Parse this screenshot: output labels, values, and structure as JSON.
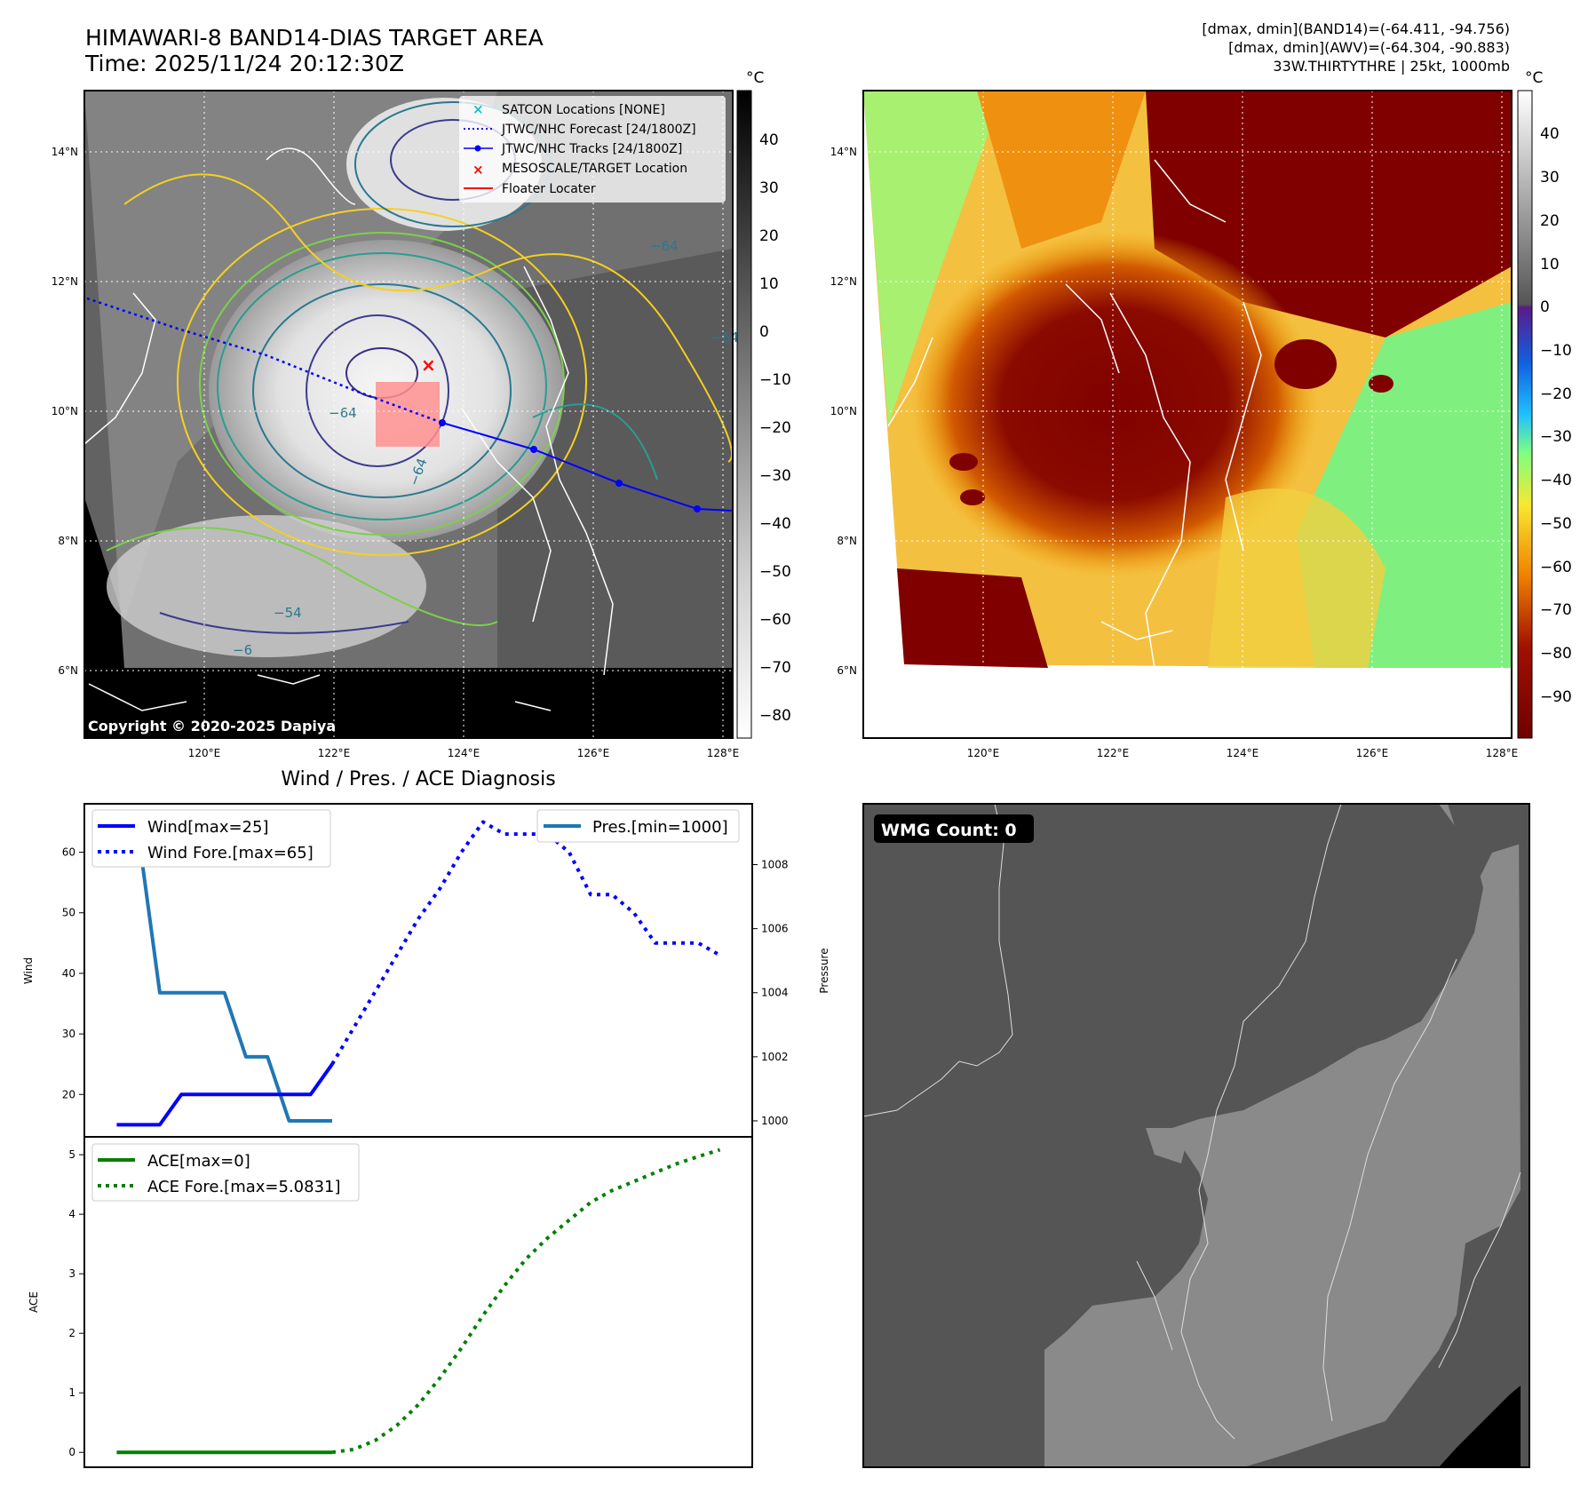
{
  "panel_tl": {
    "title_line1": "HIMAWARI-8 BAND14-DIAS TARGET AREA",
    "title_line2": "Time: 2025/11/24 20:12:30Z",
    "copyright": "Copyright © 2020-2025 Dapiya",
    "cbar_unit": "°C",
    "cbar_ticks": [
      "40",
      "30",
      "20",
      "10",
      "0",
      "−10",
      "−20",
      "−30",
      "−40",
      "−50",
      "−60",
      "−70",
      "−80"
    ],
    "lat_labels": [
      "14°N",
      "12°N",
      "10°N",
      "8°N",
      "6°N"
    ],
    "lon_labels": [
      "120°E",
      "122°E",
      "124°E",
      "126°E",
      "128°E"
    ],
    "contour_labels": [
      "−64",
      "−64",
      "−64",
      "−64",
      "−54",
      "−6"
    ],
    "legend": [
      {
        "label": "SATCON Locations [NONE]",
        "color": "#17becf"
      },
      {
        "label": "JTWC/NHC Forecast [24/1800Z]",
        "color": "#0000ff"
      },
      {
        "label": "JTWC/NHC Tracks [24/1800Z]",
        "color": "#0000ff"
      },
      {
        "label": "MESOSCALE/TARGET Location",
        "color": "#ff0000"
      },
      {
        "label": "Floater Locater",
        "color": "#ff0000"
      }
    ]
  },
  "panel_tr": {
    "meta_line1": "[dmax, dmin](BAND14)=(-64.411, -94.756)",
    "meta_line2": "[dmax, dmin](AWV)=(-64.304, -90.883)",
    "meta_line3": "33W.THIRTYTHRE | 25kt, 1000mb",
    "cbar_unit": "°C",
    "cbar_ticks": [
      "40",
      "30",
      "20",
      "10",
      "0",
      "−10",
      "−20",
      "−30",
      "−40",
      "−50",
      "−60",
      "−70",
      "−80",
      "−90"
    ],
    "lat_labels": [
      "14°N",
      "12°N",
      "10°N",
      "8°N",
      "6°N"
    ],
    "lon_labels": [
      "120°E",
      "122°E",
      "124°E",
      "126°E",
      "128°E"
    ]
  },
  "panel_br": {
    "badge": "WMG Count: 0"
  },
  "chart_data": [
    {
      "type": "line",
      "title": "Wind / Pres. / ACE Diagnosis",
      "ylabel": "Wind",
      "y2label": "Pressure",
      "ylim": [
        13,
        68
      ],
      "y2lim": [
        999.5,
        1009.9
      ],
      "yticks": [
        20,
        30,
        40,
        50,
        60
      ],
      "y2ticks": [
        1000,
        1002,
        1004,
        1006,
        1008
      ],
      "xlim": [
        -1.5,
        29.5
      ],
      "series": [
        {
          "name": "Wind[max=25]",
          "style": "solid",
          "color": "#0000ff",
          "x": [
            0,
            1,
            2,
            3,
            4,
            5,
            6,
            7,
            8,
            9,
            10
          ],
          "y": [
            15,
            15,
            15,
            20,
            20,
            20,
            20,
            20,
            20,
            20,
            25
          ]
        },
        {
          "name": "Wind Fore.[max=65]",
          "style": "dotted",
          "color": "#0000ff",
          "x": [
            10,
            11,
            12,
            13,
            14,
            15,
            16,
            17,
            18,
            19,
            20,
            21,
            22,
            23,
            24,
            25,
            26,
            27,
            28
          ],
          "y": [
            25,
            31,
            37,
            43,
            49,
            54,
            60,
            65,
            63,
            63,
            63,
            60,
            53,
            53,
            50,
            45,
            45,
            45,
            43
          ]
        },
        {
          "name": "Pres.[min=1000]",
          "style": "solid",
          "color": "#1f77b4",
          "axis": "right",
          "x": [
            0,
            1,
            2,
            3,
            4,
            5,
            6,
            7,
            8,
            9,
            10
          ],
          "y": [
            1009,
            1009,
            1004,
            1004,
            1004,
            1004,
            1002,
            1002,
            1000,
            1000,
            1000
          ]
        }
      ]
    },
    {
      "type": "line",
      "ylabel": "ACE",
      "ylim": [
        -0.25,
        5.3
      ],
      "yticks": [
        0,
        1,
        2,
        3,
        4,
        5
      ],
      "xlim": [
        -1.5,
        29.5
      ],
      "series": [
        {
          "name": "ACE[max=0]",
          "style": "solid",
          "color": "#008000",
          "x": [
            0,
            1,
            2,
            3,
            4,
            5,
            6,
            7,
            8,
            9,
            10
          ],
          "y": [
            0,
            0,
            0,
            0,
            0,
            0,
            0,
            0,
            0,
            0,
            0
          ]
        },
        {
          "name": "ACE Fore.[max=5.0831]",
          "style": "dotted",
          "color": "#008000",
          "x": [
            10,
            11,
            12,
            13,
            14,
            15,
            16,
            17,
            18,
            19,
            20,
            21,
            22,
            23,
            24,
            25,
            26,
            27,
            28
          ],
          "y": [
            0,
            0.05,
            0.2,
            0.45,
            0.8,
            1.25,
            1.75,
            2.3,
            2.8,
            3.25,
            3.6,
            3.9,
            4.2,
            4.4,
            4.55,
            4.7,
            4.85,
            4.97,
            5.0831
          ]
        }
      ]
    }
  ]
}
